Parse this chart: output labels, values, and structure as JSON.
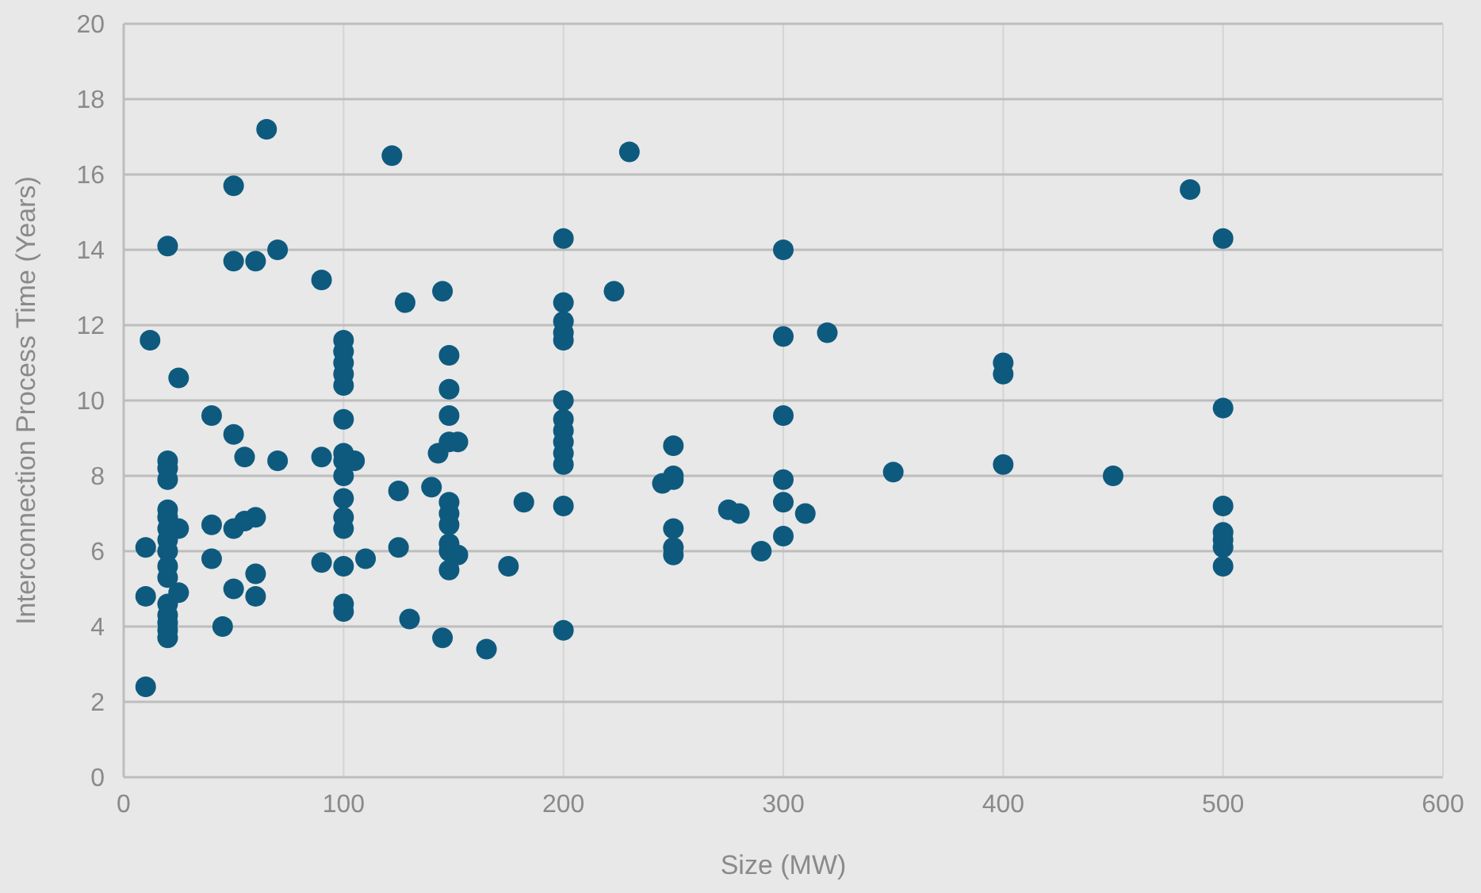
{
  "chart_data": {
    "type": "scatter",
    "xlabel": "Size (MW)",
    "ylabel": "Interconnection Process Time (Years)",
    "xlim": [
      0,
      600
    ],
    "xticks": [
      0,
      100,
      200,
      300,
      400,
      500,
      600
    ],
    "ylim": [
      0,
      20
    ],
    "yticks": [
      0,
      2,
      4,
      6,
      8,
      10,
      12,
      14,
      16,
      18,
      20
    ],
    "grid": true,
    "marker": "circle",
    "series": [
      {
        "color": "#0e5a7e",
        "x": [
          10,
          10,
          10,
          12,
          20,
          20,
          20,
          20,
          20,
          20,
          20,
          20,
          20,
          20,
          20,
          20,
          20,
          20,
          20,
          20,
          25,
          25,
          25,
          40,
          40,
          40,
          45,
          50,
          50,
          50,
          50,
          50,
          55,
          55,
          60,
          60,
          60,
          60,
          65,
          70,
          70,
          90,
          90,
          90,
          100,
          100,
          100,
          100,
          100,
          100,
          100,
          100,
          100,
          100,
          100,
          100,
          100,
          100,
          100,
          105,
          110,
          122,
          125,
          125,
          128,
          130,
          140,
          143,
          145,
          145,
          148,
          148,
          148,
          148,
          148,
          148,
          148,
          148,
          148,
          148,
          152,
          152,
          165,
          175,
          182,
          200,
          200,
          200,
          200,
          200,
          200,
          200,
          200,
          200,
          200,
          200,
          200,
          200,
          223,
          230,
          245,
          250,
          250,
          250,
          250,
          250,
          250,
          275,
          280,
          290,
          300,
          300,
          300,
          300,
          300,
          300,
          310,
          320,
          350,
          400,
          400,
          400,
          450,
          485,
          500,
          500,
          500,
          500,
          500,
          500,
          500
        ],
        "values": [
          2.4,
          6.1,
          4.8,
          11.6,
          14.1,
          8.4,
          8.2,
          7.9,
          7.1,
          6.9,
          6.6,
          6.3,
          6.0,
          5.6,
          5.3,
          4.6,
          4.3,
          4.1,
          3.9,
          3.7,
          6.6,
          4.9,
          10.6,
          9.6,
          6.7,
          5.8,
          4.0,
          15.7,
          13.7,
          9.1,
          6.6,
          5.0,
          6.8,
          8.5,
          13.7,
          6.9,
          5.4,
          4.8,
          17.2,
          14.0,
          8.4,
          13.2,
          8.5,
          5.7,
          11.6,
          11.3,
          11.0,
          10.7,
          10.4,
          9.5,
          8.6,
          8.4,
          8.0,
          7.4,
          6.9,
          6.6,
          5.6,
          4.6,
          4.4,
          8.4,
          5.8,
          16.5,
          7.6,
          6.1,
          12.6,
          4.2,
          7.7,
          8.6,
          12.9,
          3.7,
          11.2,
          10.3,
          9.6,
          8.9,
          7.3,
          7.0,
          6.7,
          6.2,
          6.0,
          5.5,
          8.9,
          5.9,
          3.4,
          5.6,
          7.3,
          14.3,
          12.6,
          12.1,
          11.8,
          11.6,
          10.0,
          9.5,
          9.2,
          8.9,
          8.6,
          8.3,
          7.2,
          3.9,
          12.9,
          16.6,
          7.8,
          8.8,
          8.0,
          7.9,
          6.6,
          6.1,
          5.9,
          7.1,
          7.0,
          6.0,
          14.0,
          11.7,
          9.6,
          7.9,
          7.3,
          6.4,
          7.0,
          11.8,
          8.1,
          11.0,
          10.7,
          8.3,
          8.0,
          15.6,
          14.3,
          9.8,
          7.2,
          6.5,
          6.3,
          6.1,
          5.6
        ]
      }
    ]
  }
}
